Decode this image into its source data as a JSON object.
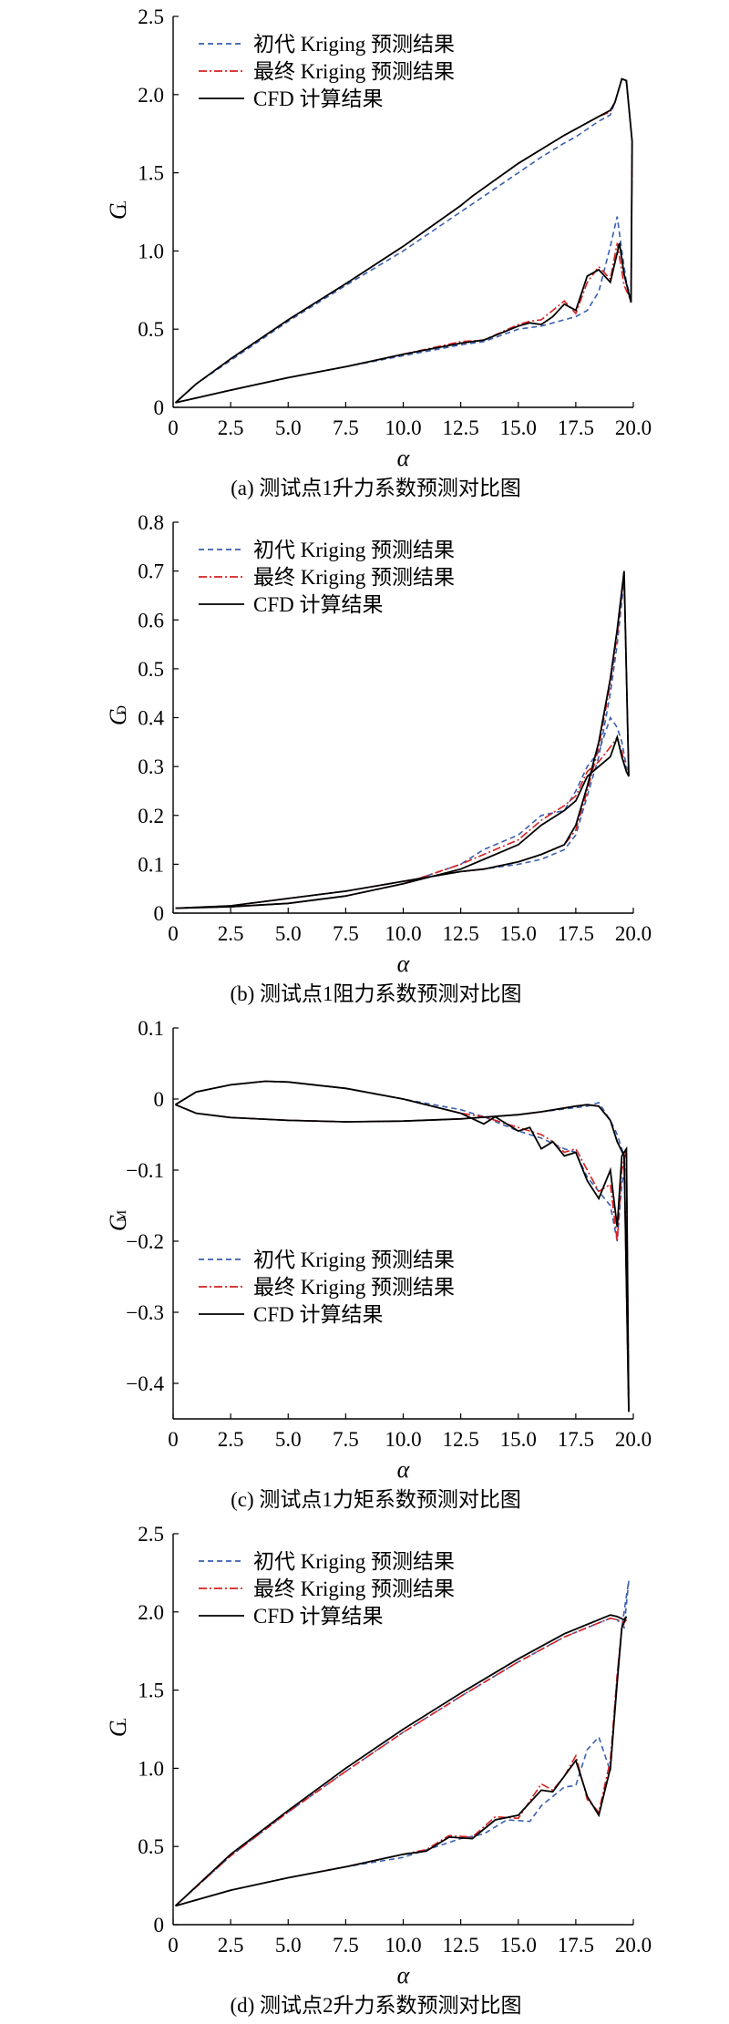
{
  "chart_data": [
    {
      "type": "line",
      "caption": "(a) 测试点1升力系数预测对比图",
      "ylabel": "C",
      "ylabel_sub": "L",
      "xlabel": "α",
      "xlim": [
        0,
        20
      ],
      "ylim": [
        0,
        2.5
      ],
      "xticks": [
        "0",
        "2.5",
        "5.0",
        "7.5",
        "10.0",
        "12.5",
        "15.0",
        "17.5",
        "20.0"
      ],
      "yticks": [
        "0",
        "0.5",
        "1.0",
        "1.5",
        "2.0",
        "2.5"
      ],
      "legend_position": "top-left",
      "series": [
        {
          "name": "初代 Kriging 预测结果",
          "color": "#3a5fb0",
          "dash": "dashed",
          "x": [
            0.1,
            1,
            2.5,
            5,
            7.5,
            10,
            12.5,
            13.5,
            15,
            16,
            17,
            17.5,
            18,
            18.5,
            19,
            19.3,
            19.5,
            19.7,
            19.9,
            19.95,
            19.7,
            19.5,
            19.2,
            19,
            18.5,
            18,
            17.5,
            17,
            16,
            15,
            13,
            12.5,
            10,
            7.5,
            5,
            2.5,
            1,
            0.1
          ],
          "y": [
            0.03,
            0.06,
            0.11,
            0.19,
            0.26,
            0.33,
            0.4,
            0.42,
            0.5,
            0.52,
            0.56,
            0.58,
            0.62,
            0.74,
            1.03,
            1.22,
            1.0,
            0.8,
            0.69,
            1.7,
            2.08,
            2.1,
            1.95,
            1.87,
            1.83,
            1.78,
            1.73,
            1.69,
            1.6,
            1.5,
            1.3,
            1.25,
            1.0,
            0.78,
            0.55,
            0.3,
            0.15,
            0.03
          ]
        },
        {
          "name": "最终 Kriging 预测结果",
          "color": "#d62020",
          "dash": "dashdot",
          "x": [
            0.1,
            1,
            2.5,
            5,
            7.5,
            10,
            12.5,
            13.5,
            15,
            15.5,
            16,
            16.5,
            17,
            17.5,
            18,
            18.5,
            19,
            19.3,
            19.6,
            19.9,
            19.95,
            19.7,
            19.5,
            19.2,
            19,
            18.5,
            18,
            17.5,
            17,
            16,
            15,
            13,
            12.5,
            10,
            7.5,
            5,
            2.5,
            1,
            0.1
          ],
          "y": [
            0.03,
            0.06,
            0.11,
            0.19,
            0.26,
            0.34,
            0.42,
            0.43,
            0.53,
            0.55,
            0.56,
            0.62,
            0.68,
            0.6,
            0.8,
            0.9,
            0.82,
            1.05,
            0.78,
            0.68,
            1.7,
            2.09,
            2.1,
            1.95,
            1.89,
            1.86,
            1.82,
            1.78,
            1.74,
            1.65,
            1.56,
            1.35,
            1.29,
            1.03,
            0.79,
            0.56,
            0.31,
            0.15,
            0.03
          ]
        },
        {
          "name": "CFD 计算结果",
          "color": "#000000",
          "dash": "solid",
          "x": [
            0.1,
            1,
            2.5,
            5,
            7.5,
            10,
            12.5,
            13.5,
            15,
            15.5,
            16,
            16.5,
            17,
            17.5,
            18,
            18.5,
            19,
            19.4,
            19.6,
            19.9,
            19.95,
            19.7,
            19.5,
            19.2,
            19,
            18.5,
            18,
            17.5,
            17,
            16,
            15,
            13,
            12.5,
            10,
            7.5,
            5,
            2.5,
            1,
            0.1
          ],
          "y": [
            0.03,
            0.06,
            0.11,
            0.19,
            0.26,
            0.34,
            0.41,
            0.43,
            0.52,
            0.54,
            0.53,
            0.58,
            0.66,
            0.62,
            0.84,
            0.88,
            0.8,
            1.05,
            0.85,
            0.67,
            1.7,
            2.09,
            2.1,
            1.95,
            1.9,
            1.86,
            1.82,
            1.78,
            1.74,
            1.65,
            1.56,
            1.35,
            1.29,
            1.03,
            0.79,
            0.56,
            0.31,
            0.15,
            0.03
          ]
        }
      ]
    },
    {
      "type": "line",
      "caption": "(b) 测试点1阻力系数预测对比图",
      "ylabel": "C",
      "ylabel_sub": "D",
      "xlabel": "α",
      "xlim": [
        0,
        20
      ],
      "ylim": [
        0,
        0.8
      ],
      "xticks": [
        "0",
        "2.5",
        "5.0",
        "7.5",
        "10.0",
        "12.5",
        "15.0",
        "17.5",
        "20.0"
      ],
      "yticks": [
        "0",
        "0.1",
        "0.2",
        "0.3",
        "0.4",
        "0.5",
        "0.6",
        "0.7",
        "0.8"
      ],
      "legend_position": "top-left",
      "series": [
        {
          "name": "初代 Kriging 预测结果",
          "color": "#3a5fb0",
          "dash": "dashed",
          "x": [
            0.1,
            2.5,
            5,
            7.5,
            10,
            12.5,
            13.5,
            15,
            16,
            17,
            17.5,
            18,
            18.5,
            19,
            19.3,
            19.5,
            19.7,
            19.8,
            19.6,
            19.3,
            19,
            18.5,
            18,
            17.5,
            17,
            16,
            15,
            13.5,
            12.5,
            10,
            7.5,
            5,
            2.5,
            0.1
          ],
          "y": [
            0.01,
            0.013,
            0.02,
            0.035,
            0.06,
            0.1,
            0.13,
            0.16,
            0.2,
            0.21,
            0.25,
            0.3,
            0.33,
            0.4,
            0.38,
            0.35,
            0.3,
            0.29,
            0.68,
            0.55,
            0.45,
            0.32,
            0.24,
            0.16,
            0.13,
            0.11,
            0.1,
            0.09,
            0.085,
            0.065,
            0.045,
            0.03,
            0.015,
            0.01
          ]
        },
        {
          "name": "最终 Kriging 预测结果",
          "color": "#d62020",
          "dash": "dashdot",
          "x": [
            0.1,
            2.5,
            5,
            7.5,
            10,
            12.5,
            13.5,
            15,
            16,
            17,
            17.5,
            18,
            18.5,
            19,
            19.3,
            19.5,
            19.7,
            19.8,
            19.6,
            19.3,
            19,
            18.5,
            18,
            17.5,
            17,
            16,
            15,
            13.5,
            12.5,
            10,
            7.5,
            5,
            2.5,
            0.1
          ],
          "y": [
            0.01,
            0.013,
            0.02,
            0.035,
            0.06,
            0.1,
            0.12,
            0.15,
            0.19,
            0.22,
            0.24,
            0.29,
            0.31,
            0.34,
            0.36,
            0.33,
            0.29,
            0.28,
            0.69,
            0.57,
            0.47,
            0.34,
            0.25,
            0.17,
            0.14,
            0.12,
            0.105,
            0.09,
            0.085,
            0.065,
            0.045,
            0.03,
            0.015,
            0.01
          ]
        },
        {
          "name": "CFD 计算结果",
          "color": "#000000",
          "dash": "solid",
          "x": [
            0.1,
            2.5,
            5,
            7.5,
            10,
            12.5,
            13.5,
            15,
            16,
            17,
            17.5,
            18,
            18.5,
            19,
            19.3,
            19.5,
            19.7,
            19.8,
            19.6,
            19.3,
            19,
            18.5,
            18,
            17.5,
            17,
            16,
            15,
            13.5,
            12.5,
            10,
            7.5,
            5,
            2.5,
            0.1
          ],
          "y": [
            0.01,
            0.013,
            0.02,
            0.035,
            0.06,
            0.09,
            0.11,
            0.14,
            0.18,
            0.21,
            0.23,
            0.28,
            0.3,
            0.32,
            0.36,
            0.32,
            0.29,
            0.28,
            0.7,
            0.58,
            0.48,
            0.35,
            0.26,
            0.18,
            0.14,
            0.12,
            0.105,
            0.09,
            0.085,
            0.065,
            0.045,
            0.03,
            0.015,
            0.01
          ]
        }
      ]
    },
    {
      "type": "line",
      "caption": "(c) 测试点1力矩系数预测对比图",
      "ylabel": "C",
      "ylabel_sub": "M",
      "xlabel": "α",
      "xlim": [
        0,
        20
      ],
      "ylim": [
        -0.45,
        0.1
      ],
      "xticks": [
        "0",
        "2.5",
        "5.0",
        "7.5",
        "10.0",
        "12.5",
        "15.0",
        "17.5",
        "20.0"
      ],
      "yticks": [
        "0.1",
        "0",
        "−0.1",
        "−0.2",
        "−0.3",
        "−0.4"
      ],
      "legend_position": "bottom-left",
      "series": [
        {
          "name": "初代 Kriging 预测结果",
          "color": "#3a5fb0",
          "dash": "dashed",
          "x": [
            0.1,
            1,
            2.5,
            4,
            5,
            7.5,
            10,
            12.5,
            13.5,
            15,
            16,
            17,
            17.5,
            18,
            18.5,
            19,
            19.3,
            19.5,
            19.7,
            19.8,
            19.6,
            19.3,
            19,
            18.5,
            18,
            17.5,
            16,
            15,
            12.5,
            10,
            7.5,
            5,
            2.5,
            1,
            0.1
          ],
          "y": [
            -0.008,
            0.01,
            0.02,
            0.025,
            0.024,
            0.015,
            0.0,
            -0.015,
            -0.025,
            -0.045,
            -0.055,
            -0.07,
            -0.075,
            -0.11,
            -0.13,
            -0.15,
            -0.2,
            -0.12,
            -0.09,
            -0.44,
            -0.08,
            -0.05,
            -0.03,
            -0.005,
            -0.01,
            -0.012,
            -0.018,
            -0.022,
            -0.028,
            -0.031,
            -0.032,
            -0.03,
            -0.026,
            -0.02,
            -0.008
          ]
        },
        {
          "name": "最终 Kriging 预测结果",
          "color": "#d62020",
          "dash": "dashdot",
          "x": [
            0.1,
            1,
            2.5,
            4,
            5,
            7.5,
            10,
            12.5,
            13.5,
            15,
            16,
            16.5,
            17,
            17.5,
            18,
            18.5,
            19,
            19.3,
            19.5,
            19.7,
            19.8,
            19.6,
            19.3,
            19,
            18.5,
            18,
            17.5,
            16,
            15,
            12.5,
            10,
            7.5,
            5,
            2.5,
            1,
            0.1
          ],
          "y": [
            -0.008,
            0.01,
            0.02,
            0.025,
            0.024,
            0.015,
            0.0,
            -0.02,
            -0.025,
            -0.04,
            -0.05,
            -0.06,
            -0.075,
            -0.07,
            -0.1,
            -0.13,
            -0.12,
            -0.2,
            -0.1,
            -0.07,
            -0.44,
            -0.08,
            -0.06,
            -0.03,
            -0.01,
            -0.008,
            -0.01,
            -0.018,
            -0.022,
            -0.028,
            -0.031,
            -0.032,
            -0.03,
            -0.026,
            -0.02,
            -0.008
          ]
        },
        {
          "name": "CFD 计算结果",
          "color": "#000000",
          "dash": "solid",
          "x": [
            0.1,
            1,
            2.5,
            4,
            5,
            7.5,
            10,
            12.5,
            13.5,
            14,
            15,
            15.5,
            16,
            16.5,
            17,
            17.5,
            18,
            18.5,
            19,
            19.3,
            19.5,
            19.7,
            19.8,
            19.6,
            19.3,
            19,
            18.5,
            18,
            17.5,
            16,
            15,
            12.5,
            10,
            7.5,
            5,
            2.5,
            1,
            0.1
          ],
          "y": [
            -0.008,
            0.01,
            0.02,
            0.025,
            0.024,
            0.015,
            0.0,
            -0.02,
            -0.035,
            -0.025,
            -0.045,
            -0.04,
            -0.07,
            -0.06,
            -0.08,
            -0.075,
            -0.115,
            -0.14,
            -0.1,
            -0.18,
            -0.08,
            -0.07,
            -0.44,
            -0.08,
            -0.06,
            -0.03,
            -0.01,
            -0.008,
            -0.01,
            -0.018,
            -0.022,
            -0.028,
            -0.031,
            -0.032,
            -0.03,
            -0.026,
            -0.02,
            -0.008
          ]
        }
      ]
    },
    {
      "type": "line",
      "caption": "(d) 测试点2升力系数预测对比图",
      "ylabel": "C",
      "ylabel_sub": "L",
      "xlabel": "α",
      "xlim": [
        0,
        20
      ],
      "ylim": [
        0,
        2.5
      ],
      "xticks": [
        "0",
        "2.5",
        "5.0",
        "7.5",
        "10.0",
        "12.5",
        "15.0",
        "17.5",
        "20.0"
      ],
      "yticks": [
        "0",
        "0.5",
        "1.0",
        "1.5",
        "2.0",
        "2.5"
      ],
      "legend_position": "top-left",
      "series": [
        {
          "name": "初代 Kriging 预测结果",
          "color": "#3a5fb0",
          "dash": "dashed",
          "x": [
            0.1,
            2.5,
            5,
            7.5,
            10,
            12.5,
            13.5,
            14.5,
            15.5,
            16,
            17,
            17.5,
            18,
            18.5,
            19,
            19.3,
            19.5,
            19.7,
            19.8,
            19.6,
            19.3,
            19,
            18,
            17,
            15,
            12.5,
            10,
            7.5,
            5,
            2.5,
            0.1
          ],
          "y": [
            0.12,
            0.22,
            0.3,
            0.37,
            0.43,
            0.55,
            0.58,
            0.67,
            0.66,
            0.76,
            0.88,
            0.89,
            1.12,
            1.2,
            0.98,
            1.6,
            1.9,
            2.1,
            2.2,
            1.9,
            1.95,
            1.96,
            1.9,
            1.84,
            1.68,
            1.46,
            1.23,
            0.98,
            0.72,
            0.44,
            0.12
          ]
        },
        {
          "name": "最终 Kriging 预测结果",
          "color": "#d62020",
          "dash": "dashdot",
          "x": [
            0.1,
            2.5,
            5,
            7.5,
            10,
            11,
            12,
            13,
            14,
            15,
            16,
            16.5,
            17,
            17.5,
            18,
            18.5,
            19,
            19.3,
            19.5,
            19.7,
            19.6,
            19.3,
            19,
            18,
            17,
            15,
            12.5,
            10,
            7.5,
            5,
            2.5,
            0.1
          ],
          "y": [
            0.12,
            0.22,
            0.3,
            0.37,
            0.45,
            0.48,
            0.57,
            0.56,
            0.69,
            0.68,
            0.9,
            0.86,
            0.95,
            1.08,
            0.8,
            0.72,
            1.05,
            1.6,
            1.9,
            1.95,
            1.93,
            1.95,
            1.96,
            1.9,
            1.84,
            1.68,
            1.46,
            1.23,
            0.98,
            0.72,
            0.44,
            0.12
          ]
        },
        {
          "name": "CFD 计算结果",
          "color": "#000000",
          "dash": "solid",
          "x": [
            0.1,
            2.5,
            5,
            7.5,
            10,
            11,
            12,
            13,
            14,
            15,
            16,
            16.5,
            17,
            17.5,
            18,
            18.5,
            19,
            19.3,
            19.5,
            19.7,
            19.6,
            19.3,
            19,
            18,
            17,
            15,
            12.5,
            10,
            7.5,
            5,
            2.5,
            0.1
          ],
          "y": [
            0.12,
            0.22,
            0.3,
            0.37,
            0.45,
            0.47,
            0.56,
            0.55,
            0.67,
            0.7,
            0.86,
            0.85,
            0.95,
            1.05,
            0.82,
            0.7,
            1.0,
            1.55,
            1.9,
            1.97,
            1.95,
            1.97,
            1.98,
            1.92,
            1.86,
            1.7,
            1.48,
            1.25,
            1.0,
            0.73,
            0.45,
            0.12
          ]
        }
      ]
    }
  ]
}
